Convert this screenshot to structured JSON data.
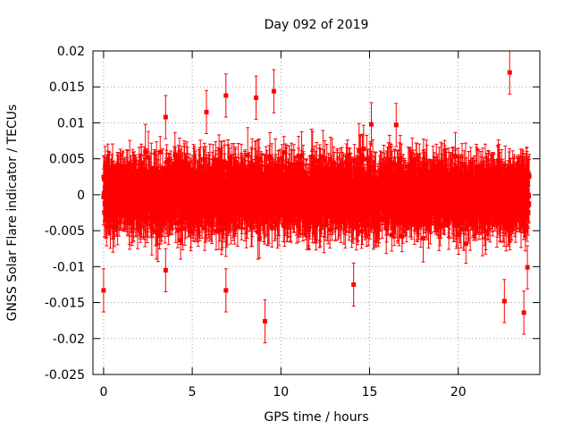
{
  "chart_data": {
    "type": "scatter",
    "title": "Day 092 of 2019",
    "xlabel": "GPS time / hours",
    "ylabel": "GNSS Solar Flare indicator / TECUs",
    "xlim": [
      -0.6,
      24.6
    ],
    "ylim": [
      -0.025,
      0.02
    ],
    "xticks": [
      0,
      5,
      10,
      15,
      20
    ],
    "xtick_labels": [
      "0",
      "5",
      "10",
      "15",
      "20"
    ],
    "yticks": [
      -0.025,
      -0.02,
      -0.015,
      -0.01,
      -0.005,
      0,
      0.005,
      0.01,
      0.015,
      0.02
    ],
    "ytick_labels": [
      "-0.025",
      "-0.02",
      "-0.015",
      "-0.01",
      "-0.005",
      "0",
      "0.005",
      "0.01",
      "0.015",
      "0.02"
    ],
    "grid": true,
    "legend": "none",
    "marker": "square",
    "color": "#ff0000",
    "series": [
      {
        "name": "solar flare indicator",
        "x_start": 0.0,
        "x_end": 24.0,
        "n_points": 2880,
        "typical_value_range": [
          -0.007,
          0.008
        ],
        "typical_error": 0.003,
        "notable_points": [
          {
            "x": 0.0,
            "y": -0.0133
          },
          {
            "x": 3.5,
            "y": 0.0108
          },
          {
            "x": 3.5,
            "y": -0.0105
          },
          {
            "x": 5.8,
            "y": 0.0115
          },
          {
            "x": 6.9,
            "y": 0.0138
          },
          {
            "x": 6.9,
            "y": -0.0133
          },
          {
            "x": 8.6,
            "y": 0.0135
          },
          {
            "x": 9.1,
            "y": -0.0176
          },
          {
            "x": 9.6,
            "y": 0.0144
          },
          {
            "x": 14.1,
            "y": -0.0125
          },
          {
            "x": 15.1,
            "y": 0.0098
          },
          {
            "x": 16.5,
            "y": 0.0097
          },
          {
            "x": 22.6,
            "y": -0.0148
          },
          {
            "x": 22.9,
            "y": 0.017
          },
          {
            "x": 23.7,
            "y": -0.0164
          },
          {
            "x": 23.9,
            "y": -0.0101
          }
        ]
      }
    ]
  }
}
